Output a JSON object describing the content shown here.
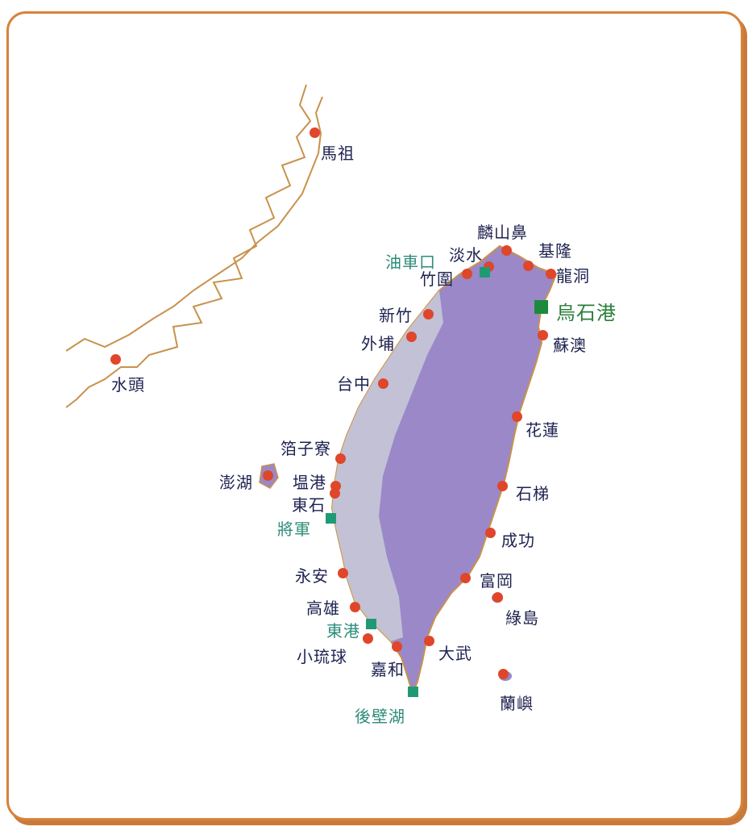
{
  "map": {
    "accent_colors": {
      "port_red": "#e0462a",
      "port_green": "#1f9a74",
      "coast": "#c8924c",
      "land": "#9a88c8"
    },
    "places": {
      "mazu": "馬祖",
      "shuitou": "水頭",
      "linshanbi": "麟山鼻",
      "keelung": "基隆",
      "danshui": "淡水",
      "youchekou": "油車口",
      "longdong": "龍洞",
      "zhuwei": "竹圍",
      "wushi": "烏石港",
      "xinzhu": "新竹",
      "waipu": "外埔",
      "suao": "蘇澳",
      "taizhong": "台中",
      "hualian": "花蓮",
      "ziliao": "箔子寮",
      "penghu": "澎湖",
      "bogang": "塭港",
      "dongshi": "東石",
      "jiangjun": "將軍",
      "shiti": "石梯",
      "chenggong": "成功",
      "yongan": "永安",
      "fugang": "富岡",
      "gaoxiong": "高雄",
      "ludao": "綠島",
      "donggang": "東港",
      "xiaoliuqiu": "小琉球",
      "dawu": "大武",
      "jiahe": "嘉和",
      "lanyu": "蘭嶼",
      "houbihu": "後壁湖"
    }
  }
}
